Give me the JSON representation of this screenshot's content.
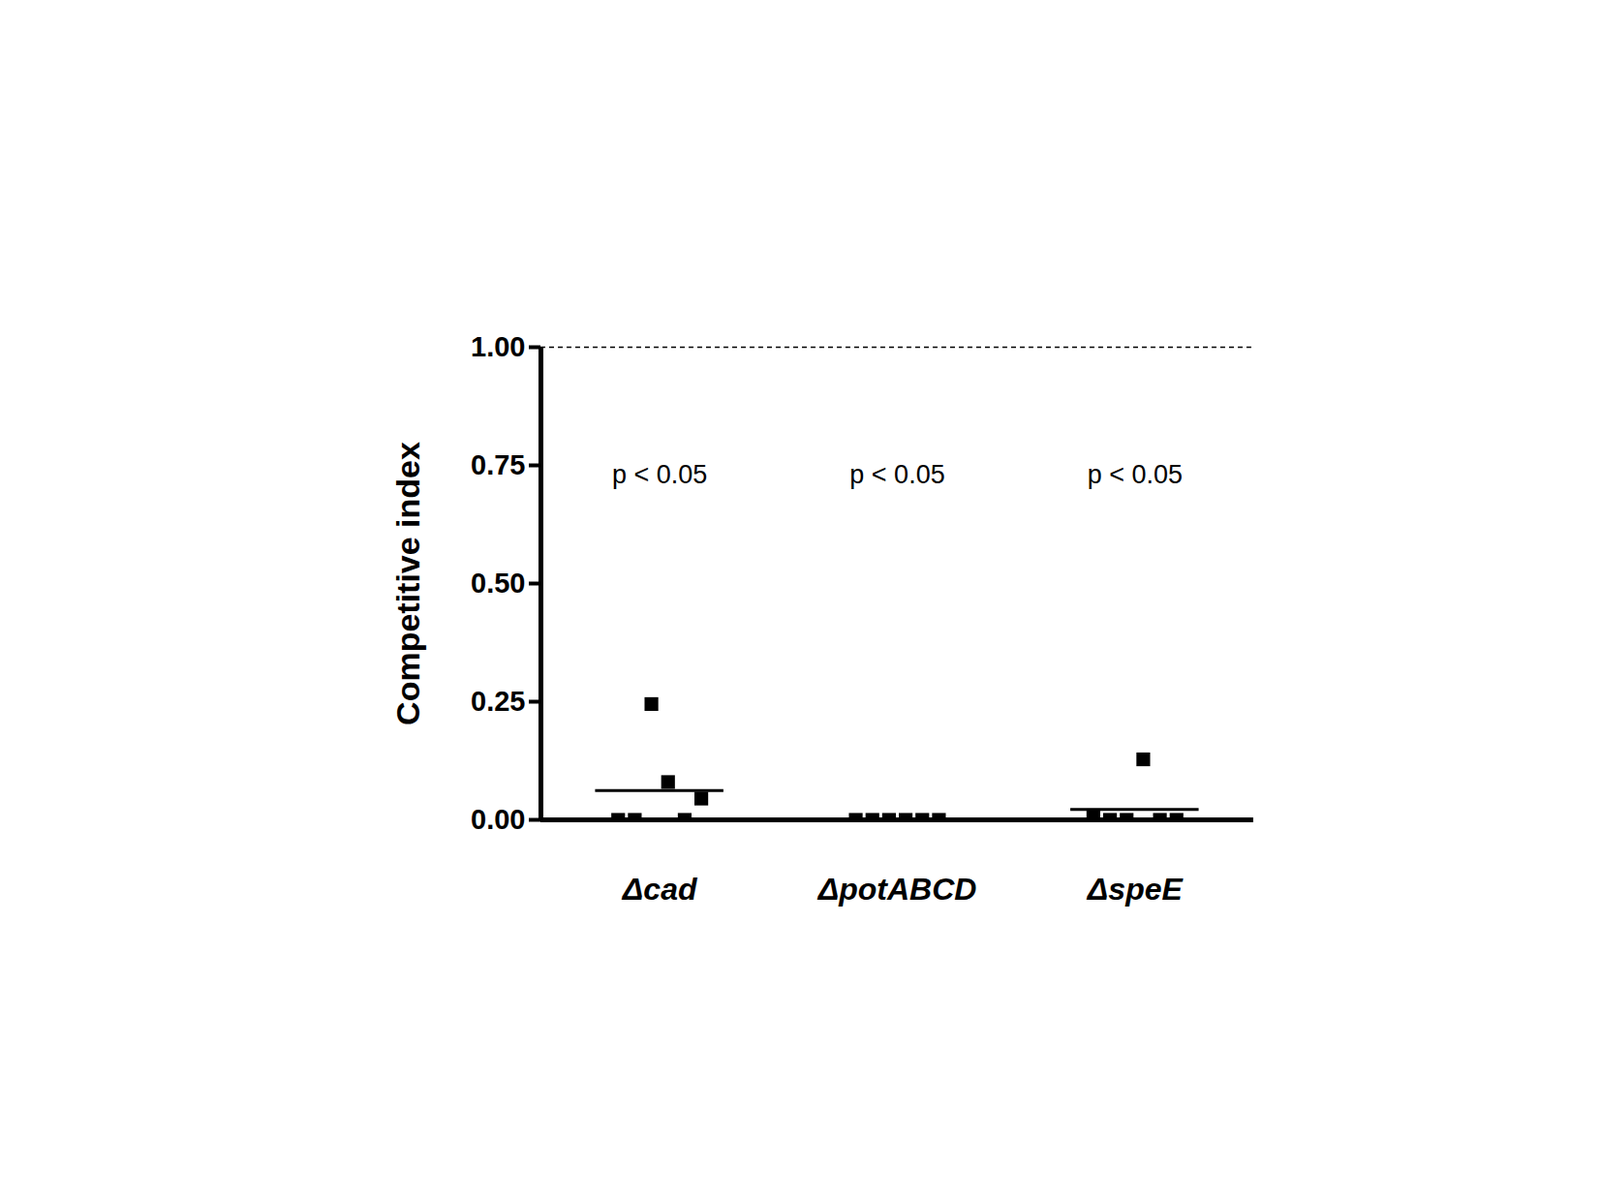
{
  "chart_data": {
    "type": "scatter",
    "categories": [
      "Δcad",
      "ΔpotABCD",
      "ΔspeE"
    ],
    "points": [
      [
        0.0,
        0.0,
        0.245,
        0.08,
        0.0,
        0.045
      ],
      [
        0.0,
        0.0,
        0.0,
        0.0,
        0.0,
        0.0
      ],
      [
        0.005,
        0.0,
        0.0,
        0.128,
        0.0,
        0.0
      ]
    ],
    "means": [
      0.062,
      0.0,
      0.022
    ],
    "ylabel": "Competitive index",
    "ylim": [
      0,
      1
    ],
    "yticks": [
      {
        "value": 0,
        "label": "0.00"
      },
      {
        "value": 0.25,
        "label": "0.25"
      },
      {
        "value": 0.5,
        "label": "0.50"
      },
      {
        "value": 0.75,
        "label": "0.75"
      },
      {
        "value": 1,
        "label": "1.00"
      }
    ],
    "reference_line": 1,
    "annotations": [
      "p < 0.05",
      "p < 0.05",
      "p < 0.05"
    ],
    "annotation_y": 0.73,
    "color": "#000000",
    "marker": "square"
  }
}
